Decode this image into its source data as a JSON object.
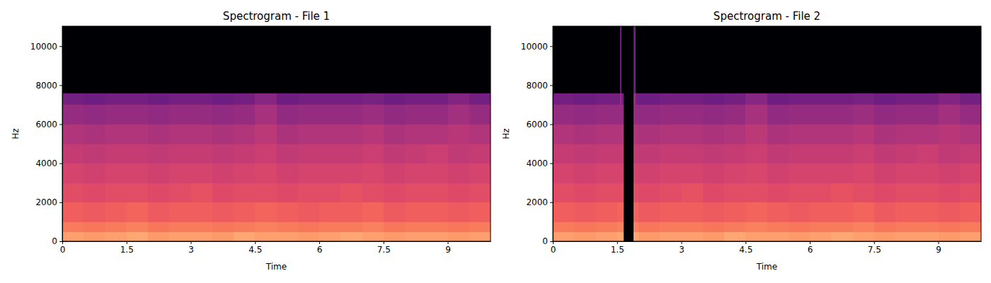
{
  "chart_data": [
    {
      "type": "heatmap",
      "title": "Spectrogram - File 1",
      "x_label": "Time",
      "y_label": "Hz",
      "color": "magma",
      "zlim": [
        -80,
        0
      ],
      "xlim": [
        0,
        10
      ],
      "ylim": [
        0,
        11025
      ],
      "xticks": [
        0,
        1.5,
        3,
        4.5,
        6,
        7.5,
        9
      ],
      "yticks": [
        0,
        2000,
        4000,
        6000,
        8000,
        10000
      ],
      "x_edges": [
        0,
        0.5,
        1,
        1.5,
        2,
        2.5,
        3,
        3.5,
        4,
        4.5,
        5,
        5.5,
        6,
        6.5,
        7,
        7.5,
        8,
        8.5,
        9,
        9.5,
        10
      ],
      "y_edges": [
        0,
        500,
        1000,
        2000,
        3000,
        4000,
        5000,
        6000,
        7000,
        7600,
        11025
      ],
      "cells": [
        [
          -16,
          -17,
          -16,
          -15,
          -17,
          -16,
          -16,
          -17,
          -15,
          -16,
          -16,
          -17,
          -16,
          -15,
          -16,
          -17,
          -16,
          -16,
          -17,
          -16
        ],
        [
          -22,
          -23,
          -22,
          -21,
          -23,
          -22,
          -22,
          -23,
          -22,
          -21,
          -22,
          -23,
          -22,
          -22,
          -21,
          -23,
          -22,
          -22,
          -23,
          -22
        ],
        [
          -27,
          -28,
          -27,
          -26,
          -28,
          -27,
          -27,
          -28,
          -27,
          -26,
          -27,
          -28,
          -27,
          -27,
          -26,
          -28,
          -27,
          -27,
          -28,
          -27
        ],
        [
          -31,
          -32,
          -31,
          -31,
          -32,
          -31,
          -30,
          -32,
          -31,
          -31,
          -32,
          -31,
          -31,
          -30,
          -31,
          -32,
          -31,
          -31,
          -32,
          -31
        ],
        [
          -34,
          -35,
          -34,
          -34,
          -35,
          -34,
          -34,
          -35,
          -34,
          -33,
          -35,
          -34,
          -34,
          -34,
          -33,
          -35,
          -34,
          -34,
          -35,
          -34
        ],
        [
          -37,
          -38,
          -37,
          -37,
          -38,
          -37,
          -37,
          -38,
          -37,
          -36,
          -38,
          -37,
          -37,
          -37,
          -36,
          -38,
          -37,
          -36,
          -38,
          -37
        ],
        [
          -41,
          -42,
          -41,
          -41,
          -42,
          -41,
          -41,
          -42,
          -41,
          -39,
          -42,
          -41,
          -41,
          -41,
          -40,
          -42,
          -41,
          -41,
          -40,
          -41
        ],
        [
          -46,
          -47,
          -46,
          -46,
          -47,
          -46,
          -46,
          -47,
          -46,
          -43,
          -47,
          -46,
          -46,
          -46,
          -45,
          -47,
          -46,
          -46,
          -44,
          -46
        ],
        [
          -53,
          -54,
          -53,
          -53,
          -54,
          -53,
          -53,
          -54,
          -53,
          -49,
          -54,
          -53,
          -53,
          -53,
          -52,
          -54,
          -53,
          -53,
          -50,
          -53
        ],
        [
          -80,
          -80,
          -80,
          -80,
          -80,
          -80,
          -80,
          -80,
          -80,
          -80,
          -80,
          -80,
          -80,
          -80,
          -80,
          -80,
          -80,
          -80,
          -80,
          -80
        ]
      ]
    },
    {
      "type": "heatmap",
      "title": "Spectrogram - File 2",
      "x_label": "Time",
      "y_label": "Hz",
      "color": "magma",
      "zlim": [
        -80,
        0
      ],
      "xlim": [
        0,
        10
      ],
      "ylim": [
        0,
        11025
      ],
      "xticks": [
        0,
        1.5,
        3,
        4.5,
        6,
        7.5,
        9
      ],
      "yticks": [
        0,
        2000,
        4000,
        6000,
        8000,
        10000
      ],
      "x_edges": [
        0,
        0.5,
        1,
        1.5,
        1.57,
        1.61,
        1.65,
        1.89,
        1.93,
        2,
        2.5,
        3,
        3.5,
        4,
        4.5,
        5,
        5.5,
        6,
        6.5,
        7,
        7.5,
        8,
        8.5,
        9,
        9.5,
        10
      ],
      "y_edges": [
        0,
        500,
        1000,
        2000,
        3000,
        4000,
        5000,
        6000,
        7000,
        7600,
        11025
      ],
      "cells": [
        [
          -16,
          -17,
          -16,
          -15,
          -15,
          -15,
          -80,
          -15,
          -15,
          -17,
          -16,
          -16,
          -17,
          -15,
          -16,
          -16,
          -17,
          -16,
          -15,
          -16,
          -17,
          -16,
          -16,
          -17,
          -16
        ],
        [
          -22,
          -23,
          -22,
          -21,
          -21,
          -21,
          -80,
          -21,
          -21,
          -23,
          -22,
          -22,
          -23,
          -22,
          -21,
          -22,
          -23,
          -22,
          -22,
          -21,
          -23,
          -22,
          -22,
          -23,
          -22
        ],
        [
          -27,
          -28,
          -27,
          -26,
          -26,
          -26,
          -80,
          -26,
          -26,
          -28,
          -27,
          -27,
          -28,
          -27,
          -26,
          -27,
          -28,
          -27,
          -27,
          -26,
          -28,
          -27,
          -27,
          -28,
          -27
        ],
        [
          -31,
          -32,
          -31,
          -31,
          -31,
          -31,
          -80,
          -31,
          -31,
          -32,
          -31,
          -30,
          -32,
          -31,
          -31,
          -32,
          -31,
          -31,
          -30,
          -31,
          -32,
          -31,
          -31,
          -32,
          -31
        ],
        [
          -34,
          -35,
          -34,
          -34,
          -34,
          -34,
          -80,
          -34,
          -34,
          -35,
          -34,
          -34,
          -35,
          -34,
          -33,
          -35,
          -34,
          -34,
          -34,
          -33,
          -35,
          -34,
          -34,
          -35,
          -34
        ],
        [
          -37,
          -38,
          -37,
          -37,
          -37,
          -37,
          -80,
          -37,
          -37,
          -38,
          -37,
          -37,
          -38,
          -37,
          -36,
          -38,
          -37,
          -37,
          -37,
          -36,
          -38,
          -37,
          -36,
          -38,
          -37
        ],
        [
          -41,
          -42,
          -41,
          -41,
          -41,
          -41,
          -80,
          -41,
          -41,
          -42,
          -41,
          -41,
          -42,
          -41,
          -39,
          -42,
          -41,
          -41,
          -41,
          -40,
          -42,
          -41,
          -41,
          -40,
          -41
        ],
        [
          -46,
          -47,
          -46,
          -46,
          -46,
          -46,
          -80,
          -46,
          -46,
          -47,
          -46,
          -46,
          -47,
          -46,
          -43,
          -47,
          -46,
          -46,
          -46,
          -45,
          -47,
          -46,
          -46,
          -44,
          -46
        ],
        [
          -53,
          -54,
          -53,
          -53,
          -45,
          -53,
          -80,
          -45,
          -53,
          -54,
          -53,
          -53,
          -54,
          -53,
          -49,
          -54,
          -53,
          -53,
          -53,
          -52,
          -54,
          -53,
          -53,
          -50,
          -53
        ],
        [
          -80,
          -80,
          -80,
          -80,
          -55,
          -80,
          -80,
          -55,
          -80,
          -80,
          -80,
          -80,
          -80,
          -80,
          -80,
          -80,
          -80,
          -80,
          -80,
          -80,
          -80,
          -80,
          -80,
          -80,
          -80
        ]
      ]
    }
  ]
}
